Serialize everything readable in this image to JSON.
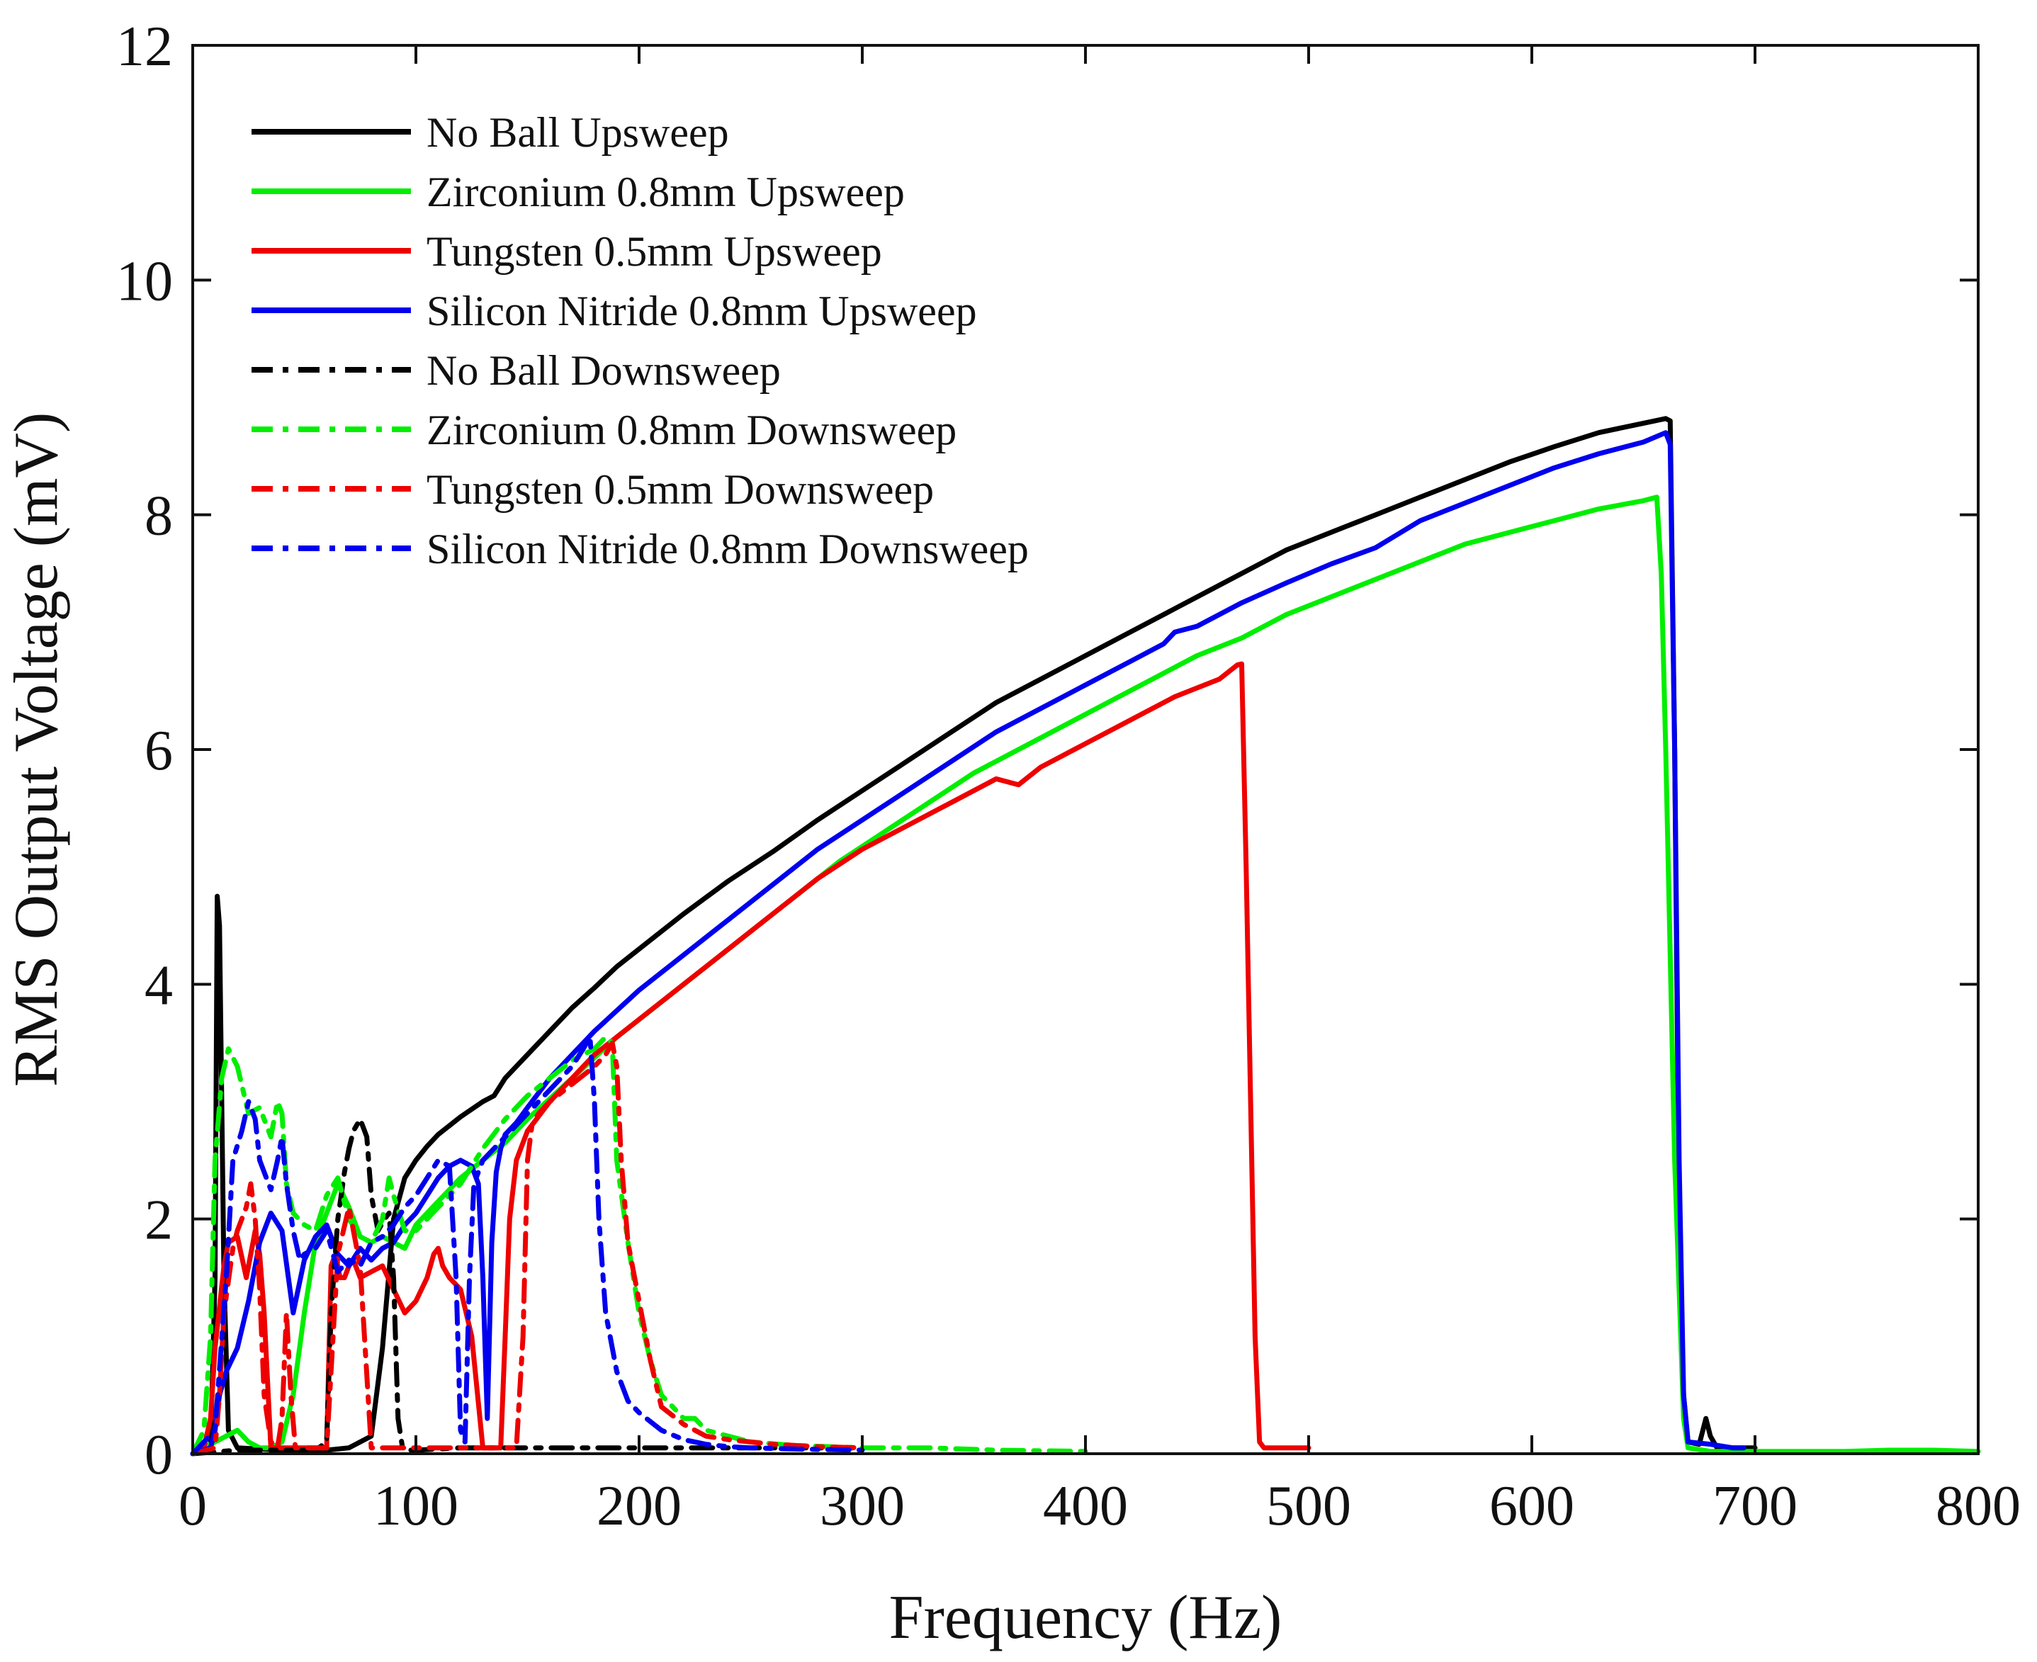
{
  "chart_data": {
    "type": "line",
    "title": "",
    "xlabel": "Frequency (Hz)",
    "ylabel": "RMS Output Voltage (mV)",
    "xlim": [
      0,
      800
    ],
    "ylim": [
      0,
      12
    ],
    "xticks": [
      0,
      100,
      200,
      300,
      400,
      500,
      600,
      700,
      800
    ],
    "yticks": [
      0,
      2,
      4,
      6,
      8,
      10,
      12
    ],
    "grid": false,
    "legend_position": "top-left",
    "series": [
      {
        "name": "No Ball Upsweep",
        "color": "#000000",
        "dash": "solid",
        "x": [
          0,
          8,
          10,
          11,
          12,
          14,
          16,
          20,
          40,
          60,
          70,
          80,
          85,
          90,
          95,
          100,
          105,
          110,
          120,
          130,
          135,
          140,
          150,
          160,
          170,
          180,
          190,
          200,
          220,
          240,
          260,
          280,
          300,
          320,
          340,
          360,
          380,
          400,
          420,
          435,
          440,
          450,
          470,
          490,
          510,
          530,
          550,
          570,
          590,
          610,
          630,
          650,
          660,
          662,
          664,
          666,
          668,
          670,
          675,
          678,
          680,
          683,
          686,
          690,
          695,
          700
        ],
        "y": [
          0.0,
          0.05,
          1.5,
          4.75,
          4.5,
          1.5,
          0.2,
          0.05,
          0.03,
          0.03,
          0.05,
          0.15,
          0.9,
          2.0,
          2.35,
          2.5,
          2.62,
          2.72,
          2.87,
          3.0,
          3.05,
          3.2,
          3.4,
          3.6,
          3.8,
          3.97,
          4.15,
          4.3,
          4.6,
          4.88,
          5.13,
          5.4,
          5.65,
          5.9,
          6.15,
          6.4,
          6.6,
          6.8,
          7.0,
          7.15,
          7.2,
          7.3,
          7.5,
          7.7,
          7.85,
          8.0,
          8.15,
          8.3,
          8.45,
          8.58,
          8.7,
          8.78,
          8.82,
          8.8,
          6.0,
          2.0,
          0.5,
          0.1,
          0.08,
          0.3,
          0.15,
          0.05,
          0.03,
          0.05,
          0.05,
          0.05
        ]
      },
      {
        "name": "Zirconium 0.8mm Upsweep",
        "color": "#00ee00",
        "dash": "solid",
        "x": [
          0,
          10,
          20,
          25,
          30,
          35,
          40,
          45,
          50,
          55,
          60,
          65,
          70,
          75,
          80,
          85,
          90,
          95,
          100,
          110,
          120,
          130,
          140,
          150,
          170,
          190,
          210,
          230,
          250,
          270,
          290,
          310,
          330,
          350,
          370,
          390,
          410,
          430,
          450,
          470,
          490,
          510,
          530,
          550,
          570,
          590,
          610,
          630,
          650,
          656,
          658,
          660,
          664,
          668,
          670,
          680,
          700,
          720,
          740,
          760,
          780,
          800
        ],
        "y": [
          0.0,
          0.1,
          0.2,
          0.1,
          0.05,
          0.05,
          0.1,
          0.5,
          1.2,
          1.8,
          2.05,
          2.3,
          2.1,
          1.85,
          1.8,
          1.85,
          1.8,
          1.75,
          1.95,
          2.15,
          2.35,
          2.5,
          2.65,
          2.85,
          3.2,
          3.55,
          3.85,
          4.15,
          4.45,
          4.75,
          5.05,
          5.3,
          5.55,
          5.8,
          6.0,
          6.2,
          6.4,
          6.6,
          6.8,
          6.95,
          7.15,
          7.3,
          7.45,
          7.6,
          7.75,
          7.85,
          7.95,
          8.05,
          8.12,
          8.15,
          7.5,
          6.0,
          2.5,
          0.3,
          0.05,
          0.02,
          0.02,
          0.02,
          0.02,
          0.03,
          0.03,
          0.02
        ]
      },
      {
        "name": "Tungsten 0.5mm Upsweep",
        "color": "#ee0000",
        "dash": "solid",
        "x": [
          0,
          5,
          8,
          10,
          14,
          16,
          20,
          24,
          28,
          30,
          32,
          35,
          40,
          45,
          50,
          55,
          60,
          62,
          64,
          66,
          68,
          70,
          72,
          75,
          80,
          85,
          90,
          95,
          100,
          105,
          108,
          110,
          112,
          115,
          120,
          125,
          130,
          133,
          135,
          138,
          140,
          142,
          145,
          150,
          160,
          170,
          180,
          190,
          200,
          220,
          240,
          260,
          280,
          300,
          320,
          340,
          360,
          370,
          380,
          400,
          420,
          440,
          460,
          468,
          470,
          472,
          474,
          476,
          478,
          480,
          485,
          490,
          500
        ],
        "y": [
          0.0,
          0.05,
          0.3,
          0.9,
          1.6,
          1.8,
          1.85,
          1.5,
          1.9,
          1.7,
          1.2,
          0.05,
          0.05,
          0.05,
          0.05,
          0.05,
          0.05,
          1.6,
          1.7,
          1.5,
          1.5,
          1.6,
          1.65,
          1.5,
          1.55,
          1.6,
          1.4,
          1.2,
          1.3,
          1.5,
          1.7,
          1.75,
          1.6,
          1.5,
          1.4,
          1.0,
          0.05,
          0.05,
          0.05,
          0.05,
          1.0,
          2.0,
          2.5,
          2.75,
          3.0,
          3.2,
          3.4,
          3.55,
          3.7,
          4.0,
          4.3,
          4.6,
          4.9,
          5.15,
          5.35,
          5.55,
          5.75,
          5.7,
          5.85,
          6.05,
          6.25,
          6.45,
          6.6,
          6.72,
          6.73,
          5.0,
          3.0,
          1.0,
          0.1,
          0.05,
          0.05,
          0.05,
          0.05
        ]
      },
      {
        "name": "Silicon Nitride 0.8mm Upsweep",
        "color": "#0000ee",
        "dash": "solid",
        "x": [
          0,
          8,
          10,
          12,
          15,
          20,
          25,
          30,
          35,
          40,
          45,
          50,
          55,
          60,
          65,
          70,
          75,
          80,
          85,
          90,
          95,
          100,
          105,
          110,
          115,
          120,
          125,
          128,
          130,
          132,
          134,
          136,
          138,
          140,
          145,
          150,
          160,
          170,
          180,
          200,
          220,
          240,
          260,
          280,
          300,
          320,
          340,
          360,
          380,
          400,
          420,
          435,
          440,
          450,
          470,
          490,
          510,
          530,
          550,
          570,
          590,
          610,
          630,
          650,
          660,
          662,
          664,
          666,
          668,
          670,
          680,
          690,
          695
        ],
        "y": [
          0.0,
          0.05,
          0.2,
          0.5,
          0.7,
          0.9,
          1.3,
          1.8,
          2.05,
          1.9,
          1.2,
          1.65,
          1.85,
          1.95,
          1.7,
          1.6,
          1.75,
          1.65,
          1.75,
          1.8,
          1.95,
          2.05,
          2.2,
          2.35,
          2.45,
          2.5,
          2.45,
          2.3,
          1.5,
          0.3,
          1.8,
          2.4,
          2.6,
          2.72,
          2.82,
          2.95,
          3.2,
          3.4,
          3.6,
          3.95,
          4.25,
          4.55,
          4.85,
          5.15,
          5.4,
          5.65,
          5.9,
          6.15,
          6.35,
          6.55,
          6.75,
          6.9,
          7.0,
          7.05,
          7.25,
          7.42,
          7.58,
          7.72,
          7.95,
          8.1,
          8.25,
          8.4,
          8.52,
          8.62,
          8.7,
          8.6,
          6.0,
          2.5,
          0.5,
          0.1,
          0.08,
          0.05,
          0.05
        ]
      },
      {
        "name": "No Ball Downsweep",
        "color": "#000000",
        "dash": "dashdot",
        "x": [
          0,
          20,
          40,
          55,
          60,
          62,
          65,
          68,
          70,
          72,
          75,
          78,
          80,
          83,
          86,
          88,
          90,
          92,
          94,
          96,
          100,
          120,
          150,
          180,
          210,
          240,
          270,
          300
        ],
        "y": [
          0.0,
          0.03,
          0.03,
          0.03,
          0.1,
          1.2,
          2.0,
          2.4,
          2.6,
          2.75,
          2.85,
          2.7,
          2.2,
          1.9,
          2.0,
          2.05,
          1.5,
          0.3,
          0.05,
          0.03,
          0.03,
          0.05,
          0.05,
          0.05,
          0.05,
          0.05,
          0.05,
          0.05
        ]
      },
      {
        "name": "Zirconium 0.8mm Downsweep",
        "color": "#00ee00",
        "dash": "dashdot",
        "x": [
          0,
          5,
          8,
          10,
          13,
          16,
          20,
          25,
          30,
          35,
          38,
          40,
          42,
          45,
          50,
          55,
          60,
          65,
          70,
          75,
          80,
          85,
          88,
          90,
          95,
          100,
          110,
          120,
          130,
          140,
          150,
          160,
          170,
          180,
          185,
          188,
          190,
          195,
          200,
          205,
          210,
          215,
          220,
          225,
          230,
          240,
          250,
          270,
          300,
          330,
          360,
          400
        ],
        "y": [
          0.0,
          0.2,
          1.0,
          2.5,
          3.2,
          3.45,
          3.3,
          2.9,
          2.95,
          2.7,
          3.0,
          2.9,
          2.3,
          2.05,
          1.95,
          1.9,
          2.2,
          2.35,
          2.0,
          1.85,
          1.8,
          2.0,
          2.35,
          2.2,
          1.9,
          1.9,
          2.1,
          2.3,
          2.6,
          2.85,
          3.05,
          3.2,
          3.35,
          3.45,
          3.55,
          3.5,
          2.5,
          1.8,
          1.2,
          0.8,
          0.5,
          0.4,
          0.3,
          0.3,
          0.2,
          0.15,
          0.1,
          0.07,
          0.05,
          0.05,
          0.03,
          0.02
        ]
      },
      {
        "name": "Tungsten 0.5mm Downsweep",
        "color": "#ee0000",
        "dash": "dashdot",
        "x": [
          0,
          10,
          12,
          14,
          18,
          20,
          24,
          26,
          28,
          30,
          32,
          35,
          38,
          40,
          42,
          44,
          46,
          48,
          50,
          55,
          60,
          65,
          70,
          75,
          80,
          90,
          100,
          110,
          120,
          130,
          140,
          145,
          148,
          150,
          152,
          155,
          160,
          170,
          180,
          185,
          188,
          190,
          192,
          195,
          200,
          205,
          210,
          220,
          230,
          240,
          250,
          260,
          280,
          300
        ],
        "y": [
          0.0,
          0.05,
          0.5,
          1.2,
          1.75,
          1.9,
          2.1,
          2.3,
          2.0,
          1.4,
          0.5,
          0.1,
          0.05,
          0.3,
          1.2,
          0.5,
          0.05,
          0.05,
          0.05,
          0.05,
          0.05,
          1.7,
          2.1,
          1.6,
          0.05,
          0.05,
          0.05,
          0.05,
          0.05,
          0.05,
          0.05,
          0.05,
          1.0,
          2.5,
          2.8,
          2.9,
          3.0,
          3.15,
          3.3,
          3.4,
          3.5,
          3.3,
          2.5,
          1.8,
          1.3,
          0.8,
          0.4,
          0.25,
          0.15,
          0.12,
          0.1,
          0.08,
          0.06,
          0.05
        ]
      },
      {
        "name": "Silicon Nitride 0.8mm Downsweep",
        "color": "#0000ee",
        "dash": "dashdot",
        "x": [
          0,
          10,
          15,
          18,
          22,
          25,
          28,
          30,
          35,
          38,
          40,
          42,
          45,
          48,
          50,
          55,
          60,
          65,
          70,
          75,
          80,
          85,
          90,
          95,
          100,
          105,
          110,
          115,
          118,
          120,
          122,
          124,
          126,
          130,
          140,
          150,
          160,
          170,
          175,
          178,
          180,
          182,
          185,
          190,
          195,
          200,
          210,
          220,
          230,
          240,
          250,
          270,
          300
        ],
        "y": [
          0.0,
          0.2,
          1.5,
          2.5,
          2.75,
          3.0,
          2.85,
          2.5,
          2.25,
          2.5,
          2.7,
          2.3,
          1.9,
          1.65,
          1.7,
          1.75,
          1.9,
          1.55,
          1.65,
          1.6,
          1.8,
          1.85,
          1.95,
          2.1,
          2.2,
          2.35,
          2.5,
          2.45,
          1.5,
          0.2,
          0.1,
          1.5,
          2.3,
          2.5,
          2.7,
          2.9,
          3.1,
          3.3,
          3.45,
          3.55,
          3.0,
          2.0,
          1.2,
          0.7,
          0.45,
          0.35,
          0.2,
          0.12,
          0.08,
          0.06,
          0.05,
          0.04,
          0.03
        ]
      }
    ]
  }
}
